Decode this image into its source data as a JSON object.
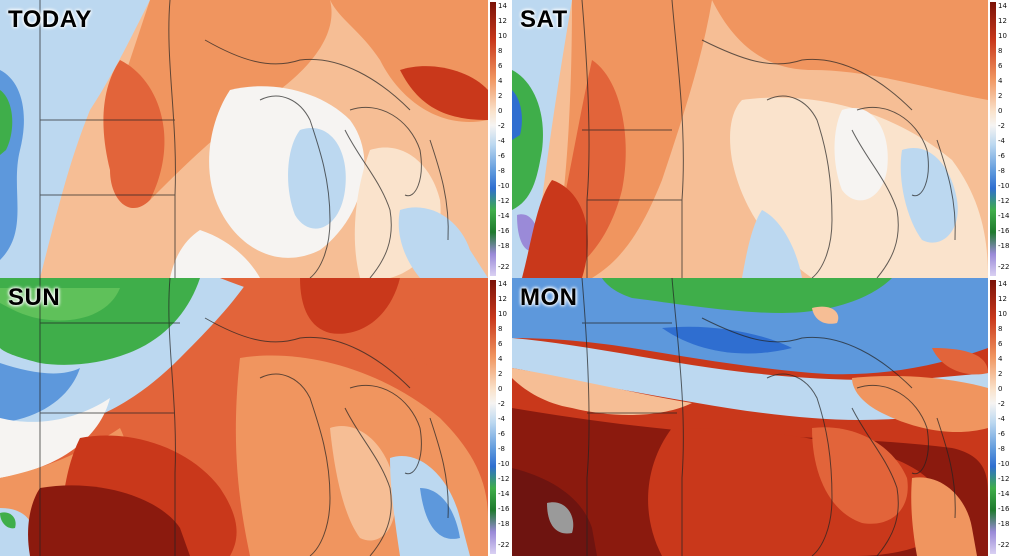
{
  "panels": [
    {
      "title": "TODAY"
    },
    {
      "title": "SAT"
    },
    {
      "title": "SUN"
    },
    {
      "title": "MON"
    }
  ],
  "legend": {
    "ticks": [
      "14",
      "12",
      "10",
      "8",
      "6",
      "4",
      "2",
      "0",
      "-2",
      "-4",
      "-6",
      "-8",
      "-10",
      "-12",
      "-14",
      "-16",
      "-18",
      "-22"
    ]
  },
  "palette": {
    "dark_red": "#8b1a0e",
    "red": "#c9381b",
    "orange_red": "#e2643a",
    "orange": "#f0955f",
    "light_orange": "#f6be95",
    "pale": "#fae3cc",
    "white": "#f6f4f2",
    "light_blue": "#bcd8f0",
    "blue": "#5d98dc",
    "deep_blue": "#2f6ed0",
    "green": "#3fae4a",
    "purple": "#9a8ad8"
  }
}
